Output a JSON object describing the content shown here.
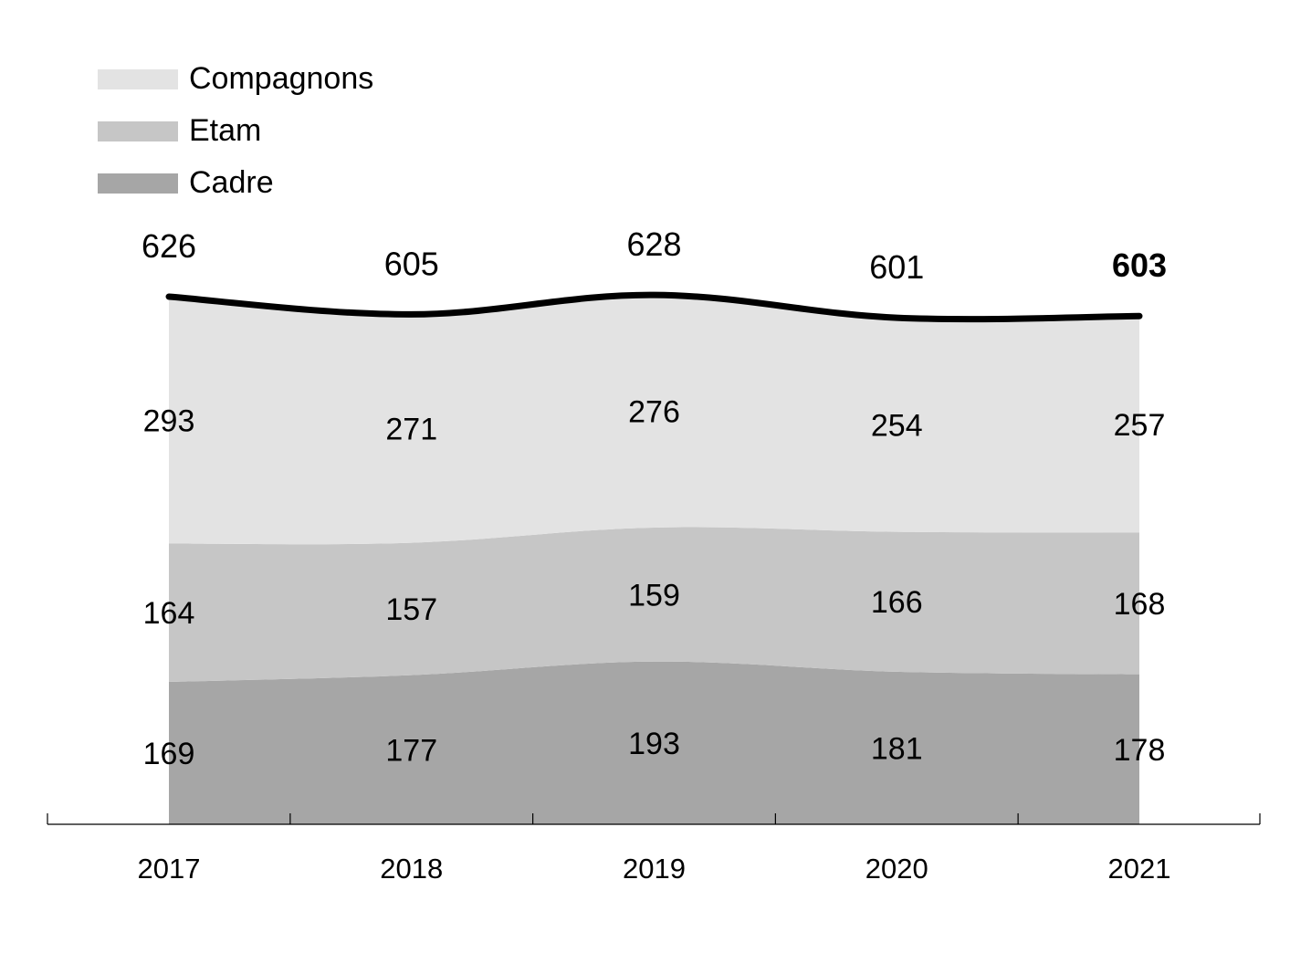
{
  "chart_data": {
    "type": "area",
    "categories": [
      "2017",
      "2018",
      "2019",
      "2020",
      "2021"
    ],
    "series": [
      {
        "name": "Cadre",
        "values": [
          169,
          177,
          193,
          181,
          178
        ],
        "color": "#a6a6a6"
      },
      {
        "name": "Etam",
        "values": [
          164,
          157,
          159,
          166,
          168
        ],
        "color": "#c6c6c6"
      },
      {
        "name": "Compagnons",
        "values": [
          293,
          271,
          276,
          254,
          257
        ],
        "color": "#e3e3e3"
      }
    ],
    "totals": [
      626,
      605,
      628,
      601,
      603
    ],
    "total_labels": [
      "626",
      "605",
      "628",
      "601",
      "603"
    ],
    "total_line_color": "#000000",
    "ylim": [
      0,
      626
    ],
    "legend": {
      "position": "top-left",
      "order": [
        "Compagnons",
        "Etam",
        "Cadre"
      ]
    },
    "title": "",
    "xlabel": "",
    "ylabel": "",
    "grid": false
  }
}
